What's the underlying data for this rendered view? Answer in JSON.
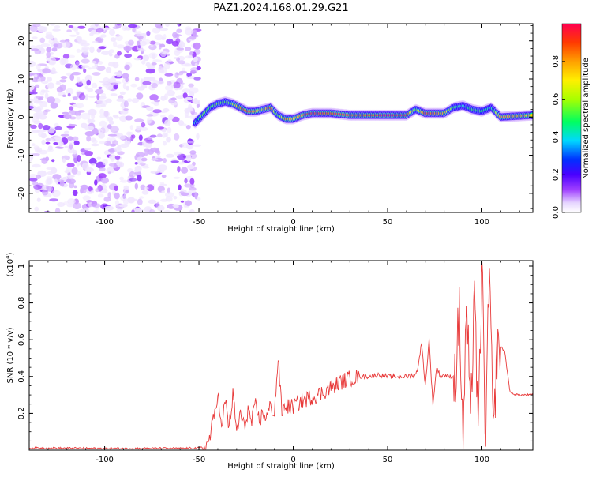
{
  "title": "PAZ1.2024.168.01.29.G21",
  "chart_data": [
    {
      "type": "heatmap",
      "xlabel": "Height of straight line (km)",
      "ylabel": "Frequency (Hz)",
      "xlim": [
        -140,
        127
      ],
      "ylim": [
        -25,
        24.5
      ],
      "xticks": [
        -100,
        -50,
        0,
        50,
        100
      ],
      "yticks": [
        -20,
        -10,
        0,
        10,
        20
      ],
      "colorbar": {
        "label": "Normalized spectral amplitude",
        "range": [
          0.0,
          1.0
        ],
        "ticks": [
          "0.0",
          "0.2",
          "0.4",
          "0.6",
          "0.8"
        ],
        "tick_values": [
          0.0,
          0.2,
          0.4,
          0.6,
          0.8
        ],
        "colors": [
          "#ffffff",
          "#dcc4ff",
          "#8a00ff",
          "#2200ff",
          "#00e0ff",
          "#00ff40",
          "#c8ff00",
          "#ffd000",
          "#ff6a00",
          "#ff0040"
        ]
      },
      "noise_region": {
        "x_range": [
          -140,
          -50
        ],
        "y_range": [
          -25,
          24.5
        ],
        "max_amplitude": 0.15
      },
      "ridge": {
        "x": [
          -52,
          -48,
          -44,
          -40,
          -36,
          -32,
          -28,
          -24,
          -20,
          -16,
          -12,
          -8,
          -4,
          0,
          5,
          10,
          20,
          30,
          40,
          50,
          60,
          65,
          70,
          80,
          85,
          90,
          95,
          100,
          105,
          110,
          127
        ],
        "freq": [
          -1.5,
          0.5,
          2.5,
          3.5,
          4.0,
          3.5,
          2.5,
          1.5,
          1.5,
          2.0,
          2.5,
          0.5,
          -0.5,
          -0.5,
          0.5,
          1.0,
          1.0,
          0.5,
          0.5,
          0.5,
          0.5,
          2.0,
          1.0,
          1.0,
          2.5,
          3.0,
          2.0,
          1.5,
          2.5,
          0.0,
          0.5
        ],
        "amplitude": [
          0.4,
          0.55,
          0.5,
          0.55,
          0.5,
          0.6,
          0.85,
          0.9,
          0.8,
          0.6,
          0.9,
          0.5,
          0.85,
          0.7,
          0.8,
          0.95,
          0.9,
          0.85,
          0.9,
          1.0,
          0.95,
          0.5,
          0.9,
          0.8,
          0.5,
          0.4,
          0.5,
          0.5,
          0.4,
          0.8,
          0.75
        ]
      }
    },
    {
      "type": "line",
      "xlabel": "Height of straight line (km)",
      "ylabel": "SNR (10 * v/v)",
      "yunit": "(x10",
      "yunit_exp": "4",
      "yunit_close": ")",
      "xlim": [
        -140,
        127
      ],
      "ylim": [
        0,
        1.03
      ],
      "xticks": [
        -100,
        -50,
        0,
        50,
        100
      ],
      "yticks": [
        0.2,
        0.4,
        0.6,
        0.8,
        1.0
      ],
      "color": "#e83a3a",
      "series": [
        {
          "x": [
            -140,
            -120,
            -100,
            -80,
            -60,
            -50,
            -46,
            -44,
            -42,
            -40,
            -38,
            -36,
            -34,
            -32,
            -30,
            -28,
            -26,
            -24,
            -22,
            -20,
            -18,
            -16,
            -14,
            -12,
            -10,
            -8,
            -6,
            -4,
            -2,
            0,
            5,
            10,
            15,
            20,
            25,
            30,
            35,
            40,
            45,
            50,
            55,
            60,
            65,
            66,
            68,
            70,
            72,
            74,
            76,
            78,
            80,
            82,
            84,
            86,
            88,
            90,
            92,
            94,
            96,
            98,
            100,
            102,
            104,
            106,
            108,
            110,
            112,
            115,
            120,
            127
          ],
          "y": [
            0.012,
            0.011,
            0.01,
            0.01,
            0.01,
            0.012,
            0.02,
            0.08,
            0.18,
            0.32,
            0.1,
            0.28,
            0.12,
            0.3,
            0.1,
            0.2,
            0.12,
            0.22,
            0.15,
            0.24,
            0.16,
            0.2,
            0.18,
            0.24,
            0.2,
            0.5,
            0.2,
            0.25,
            0.23,
            0.24,
            0.27,
            0.29,
            0.31,
            0.34,
            0.37,
            0.39,
            0.4,
            0.4,
            0.41,
            0.4,
            0.4,
            0.4,
            0.41,
            0.45,
            0.58,
            0.35,
            0.6,
            0.25,
            0.45,
            0.4,
            0.41,
            0.4,
            0.4,
            0.4,
            0.75,
            0.05,
            0.8,
            0.08,
            0.98,
            0.02,
            1.03,
            0.05,
            1.0,
            0.03,
            0.55,
            0.56,
            0.54,
            0.31,
            0.3,
            0.3
          ]
        }
      ]
    }
  ]
}
